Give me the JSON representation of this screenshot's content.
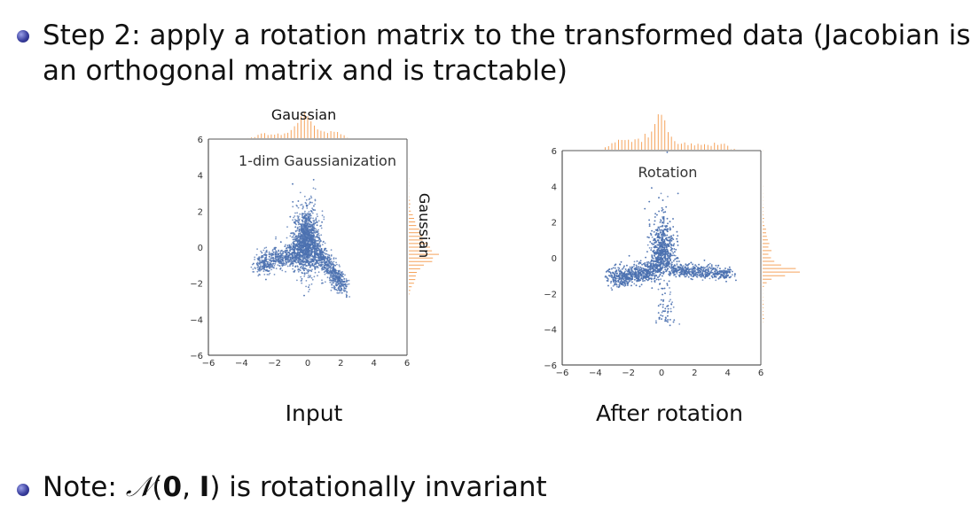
{
  "slide": {
    "bullet1_line1": "Step 2: apply a rotation matrix to the transformed data (Jacobian is",
    "bullet1_line2": "an orthogonal matrix and is tractable)",
    "bullet2_prefix": "Note: ",
    "bullet2_math_N": "𝒩",
    "bullet2_math_open": "(",
    "bullet2_math_zero": "0",
    "bullet2_math_comma": ", ",
    "bullet2_math_I": "I",
    "bullet2_math_close": ")",
    "bullet2_suffix": " is rotationally invariant"
  },
  "figures": {
    "left_caption": "Input",
    "right_caption": "After rotation"
  },
  "chart_data": [
    {
      "type": "scatter",
      "title": "1-dim Gaussianization",
      "top_hist_label": "Gaussian",
      "right_hist_label": "Gaussian",
      "xlim": [
        -6,
        6
      ],
      "ylim": [
        -6,
        6
      ],
      "xticks": [
        "−6",
        "−4",
        "−2",
        "0",
        "2",
        "4",
        "6"
      ],
      "yticks": [
        "−6",
        "−4",
        "−2",
        "0",
        "2",
        "4",
        "6"
      ],
      "point_color": "#4c72b0",
      "hist_color": "#f5a35c"
    },
    {
      "type": "scatter",
      "title": "Rotation",
      "xlim": [
        -6,
        6
      ],
      "ylim": [
        -6,
        6
      ],
      "xticks": [
        "−6",
        "−4",
        "−2",
        "0",
        "2",
        "4",
        "6"
      ],
      "yticks": [
        "−6",
        "−4",
        "−2",
        "0",
        "2",
        "4",
        "6"
      ],
      "point_color": "#4c72b0",
      "hist_color": "#f5a35c"
    }
  ]
}
